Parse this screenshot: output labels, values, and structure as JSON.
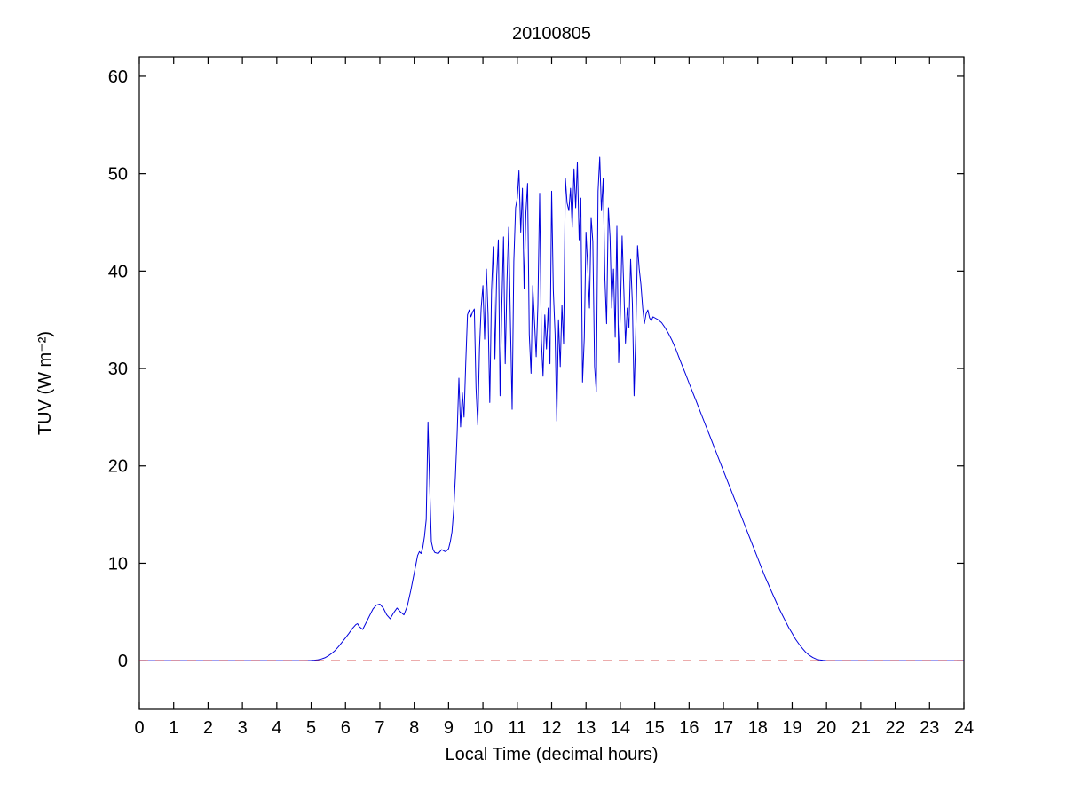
{
  "figure": {
    "background": "#ffffff"
  },
  "chart_data": {
    "type": "line",
    "title": "20100805",
    "xlabel": "Local Time (decimal hours)",
    "ylabel": "TUV (W m⁻²)",
    "xlim": [
      0,
      24
    ],
    "ylim": [
      -5,
      62
    ],
    "x_ticks": [
      0,
      1,
      2,
      3,
      4,
      5,
      6,
      7,
      8,
      9,
      10,
      11,
      12,
      13,
      14,
      15,
      16,
      17,
      18,
      19,
      20,
      21,
      22,
      23,
      24
    ],
    "y_ticks": [
      0,
      10,
      20,
      30,
      40,
      50,
      60
    ],
    "grid": false,
    "legend": "none",
    "axis_color": "#000000",
    "series": [
      {
        "name": "tuv-irradiance",
        "color": "#0000dd",
        "width": 1,
        "points": [
          [
            0,
            0
          ],
          [
            1,
            0
          ],
          [
            2,
            0
          ],
          [
            3,
            0
          ],
          [
            4,
            0
          ],
          [
            4.5,
            0
          ],
          [
            4.8,
            0
          ],
          [
            5,
            0.02
          ],
          [
            5.1,
            0.05
          ],
          [
            5.2,
            0.1
          ],
          [
            5.3,
            0.18
          ],
          [
            5.4,
            0.3
          ],
          [
            5.5,
            0.5
          ],
          [
            5.6,
            0.75
          ],
          [
            5.7,
            1.05
          ],
          [
            5.8,
            1.45
          ],
          [
            5.9,
            1.9
          ],
          [
            6,
            2.35
          ],
          [
            6.1,
            2.8
          ],
          [
            6.2,
            3.3
          ],
          [
            6.3,
            3.7
          ],
          [
            6.35,
            3.8
          ],
          [
            6.4,
            3.5
          ],
          [
            6.5,
            3.2
          ],
          [
            6.6,
            3.9
          ],
          [
            6.7,
            4.6
          ],
          [
            6.8,
            5.3
          ],
          [
            6.9,
            5.7
          ],
          [
            7,
            5.8
          ],
          [
            7.1,
            5.4
          ],
          [
            7.2,
            4.7
          ],
          [
            7.3,
            4.3
          ],
          [
            7.4,
            4.9
          ],
          [
            7.5,
            5.4
          ],
          [
            7.6,
            5
          ],
          [
            7.7,
            4.7
          ],
          [
            7.8,
            5.6
          ],
          [
            7.9,
            7.2
          ],
          [
            8,
            9
          ],
          [
            8.1,
            10.8
          ],
          [
            8.15,
            11.2
          ],
          [
            8.2,
            11
          ],
          [
            8.25,
            11.6
          ],
          [
            8.3,
            12.8
          ],
          [
            8.35,
            14.5
          ],
          [
            8.4,
            24.5
          ],
          [
            8.45,
            18
          ],
          [
            8.5,
            12.2
          ],
          [
            8.55,
            11.4
          ],
          [
            8.6,
            11.1
          ],
          [
            8.7,
            11
          ],
          [
            8.8,
            11.4
          ],
          [
            8.9,
            11.2
          ],
          [
            8.95,
            11.3
          ],
          [
            9,
            11.5
          ],
          [
            9.05,
            12.2
          ],
          [
            9.1,
            13.2
          ],
          [
            9.15,
            15.5
          ],
          [
            9.2,
            19
          ],
          [
            9.25,
            23.5
          ],
          [
            9.3,
            29
          ],
          [
            9.35,
            24
          ],
          [
            9.4,
            27.5
          ],
          [
            9.45,
            25
          ],
          [
            9.5,
            30.5
          ],
          [
            9.55,
            35.5
          ],
          [
            9.6,
            36
          ],
          [
            9.65,
            35.3
          ],
          [
            9.7,
            35.8
          ],
          [
            9.75,
            36.1
          ],
          [
            9.8,
            28
          ],
          [
            9.85,
            24.2
          ],
          [
            9.9,
            32
          ],
          [
            9.95,
            36.2
          ],
          [
            10,
            38.5
          ],
          [
            10.05,
            33
          ],
          [
            10.1,
            40.2
          ],
          [
            10.15,
            35.5
          ],
          [
            10.2,
            26.5
          ],
          [
            10.25,
            38
          ],
          [
            10.3,
            42.5
          ],
          [
            10.35,
            31
          ],
          [
            10.4,
            39.5
          ],
          [
            10.45,
            43.2
          ],
          [
            10.5,
            27.2
          ],
          [
            10.55,
            36.5
          ],
          [
            10.6,
            43.5
          ],
          [
            10.65,
            30.5
          ],
          [
            10.7,
            39
          ],
          [
            10.75,
            44.5
          ],
          [
            10.8,
            35
          ],
          [
            10.85,
            25.8
          ],
          [
            10.9,
            41
          ],
          [
            10.95,
            46.5
          ],
          [
            11,
            47.5
          ],
          [
            11.05,
            50.3
          ],
          [
            11.1,
            44
          ],
          [
            11.15,
            48.5
          ],
          [
            11.2,
            38.2
          ],
          [
            11.25,
            46
          ],
          [
            11.3,
            49
          ],
          [
            11.35,
            33.5
          ],
          [
            11.4,
            29.5
          ],
          [
            11.45,
            38.5
          ],
          [
            11.5,
            35
          ],
          [
            11.55,
            31.2
          ],
          [
            11.6,
            36.5
          ],
          [
            11.65,
            48
          ],
          [
            11.7,
            33
          ],
          [
            11.75,
            29.2
          ],
          [
            11.8,
            35.5
          ],
          [
            11.85,
            32
          ],
          [
            11.9,
            36.2
          ],
          [
            11.95,
            30.5
          ],
          [
            12,
            48.2
          ],
          [
            12.05,
            38
          ],
          [
            12.1,
            33.5
          ],
          [
            12.15,
            24.6
          ],
          [
            12.2,
            35
          ],
          [
            12.25,
            30.2
          ],
          [
            12.3,
            36.5
          ],
          [
            12.35,
            32.5
          ],
          [
            12.4,
            49.5
          ],
          [
            12.45,
            47
          ],
          [
            12.5,
            46.2
          ],
          [
            12.55,
            48.5
          ],
          [
            12.6,
            44.5
          ],
          [
            12.65,
            50.5
          ],
          [
            12.7,
            46.5
          ],
          [
            12.75,
            51.2
          ],
          [
            12.8,
            43.2
          ],
          [
            12.85,
            47.5
          ],
          [
            12.9,
            28.6
          ],
          [
            12.95,
            33.2
          ],
          [
            13,
            44
          ],
          [
            13.05,
            40.5
          ],
          [
            13.1,
            36.2
          ],
          [
            13.15,
            45.5
          ],
          [
            13.2,
            43
          ],
          [
            13.25,
            30.2
          ],
          [
            13.3,
            27.6
          ],
          [
            13.35,
            48.2
          ],
          [
            13.4,
            51.7
          ],
          [
            13.45,
            46.2
          ],
          [
            13.5,
            49.5
          ],
          [
            13.55,
            39.2
          ],
          [
            13.6,
            34.6
          ],
          [
            13.65,
            46.5
          ],
          [
            13.7,
            43.5
          ],
          [
            13.75,
            36.2
          ],
          [
            13.8,
            40.2
          ],
          [
            13.85,
            33.2
          ],
          [
            13.9,
            44.6
          ],
          [
            13.95,
            30.6
          ],
          [
            14,
            35.6
          ],
          [
            14.05,
            43.6
          ],
          [
            14.1,
            38.2
          ],
          [
            14.15,
            32.6
          ],
          [
            14.2,
            36.2
          ],
          [
            14.25,
            34.2
          ],
          [
            14.3,
            41.2
          ],
          [
            14.35,
            36.6
          ],
          [
            14.4,
            27.2
          ],
          [
            14.45,
            33.6
          ],
          [
            14.5,
            42.6
          ],
          [
            14.55,
            40.2
          ],
          [
            14.6,
            38.6
          ],
          [
            14.65,
            36.2
          ],
          [
            14.7,
            34.6
          ],
          [
            14.75,
            35.6
          ],
          [
            14.8,
            36
          ],
          [
            14.85,
            35.2
          ],
          [
            14.9,
            34.9
          ],
          [
            14.95,
            35.3
          ],
          [
            15,
            35.2
          ],
          [
            15.1,
            35
          ],
          [
            15.2,
            34.7
          ],
          [
            15.3,
            34.2
          ],
          [
            15.4,
            33.6
          ],
          [
            15.5,
            32.9
          ],
          [
            15.6,
            32.1
          ],
          [
            15.7,
            31.2
          ],
          [
            15.8,
            30.3
          ],
          [
            15.9,
            29.4
          ],
          [
            16,
            28.5
          ],
          [
            16.1,
            27.6
          ],
          [
            16.2,
            26.7
          ],
          [
            16.3,
            25.8
          ],
          [
            16.4,
            24.9
          ],
          [
            16.5,
            24
          ],
          [
            16.6,
            23.1
          ],
          [
            16.7,
            22.2
          ],
          [
            16.8,
            21.3
          ],
          [
            16.9,
            20.4
          ],
          [
            17,
            19.5
          ],
          [
            17.1,
            18.6
          ],
          [
            17.2,
            17.7
          ],
          [
            17.3,
            16.8
          ],
          [
            17.4,
            15.9
          ],
          [
            17.5,
            15
          ],
          [
            17.6,
            14.1
          ],
          [
            17.7,
            13.2
          ],
          [
            17.8,
            12.3
          ],
          [
            17.9,
            11.4
          ],
          [
            18,
            10.5
          ],
          [
            18.1,
            9.6
          ],
          [
            18.2,
            8.7
          ],
          [
            18.3,
            7.9
          ],
          [
            18.4,
            7.1
          ],
          [
            18.5,
            6.3
          ],
          [
            18.6,
            5.5
          ],
          [
            18.7,
            4.8
          ],
          [
            18.8,
            4.1
          ],
          [
            18.9,
            3.4
          ],
          [
            19,
            2.8
          ],
          [
            19.1,
            2.2
          ],
          [
            19.2,
            1.7
          ],
          [
            19.3,
            1.25
          ],
          [
            19.4,
            0.85
          ],
          [
            19.5,
            0.55
          ],
          [
            19.6,
            0.32
          ],
          [
            19.7,
            0.17
          ],
          [
            19.8,
            0.08
          ],
          [
            19.9,
            0.03
          ],
          [
            20,
            0
          ],
          [
            20.5,
            0
          ],
          [
            21,
            0
          ],
          [
            22,
            0
          ],
          [
            23,
            0
          ],
          [
            24,
            0
          ]
        ]
      },
      {
        "name": "zero-reference-line",
        "color": "#cc2222",
        "width": 1,
        "dash": "10 8",
        "points": [
          [
            0,
            0
          ],
          [
            24,
            0
          ]
        ]
      }
    ]
  }
}
